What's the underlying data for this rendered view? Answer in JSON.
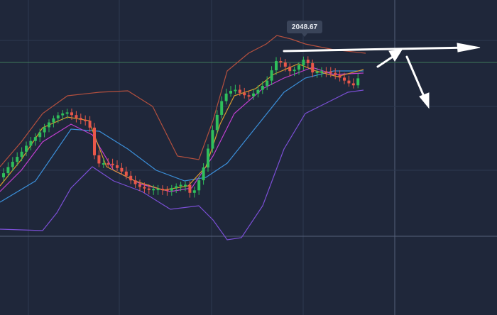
{
  "price_label": "2048.67"
}
